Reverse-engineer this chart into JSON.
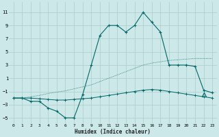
{
  "xlabel": "Humidex (Indice chaleur)",
  "x_ticks": [
    0,
    1,
    2,
    3,
    4,
    5,
    6,
    7,
    8,
    9,
    10,
    11,
    12,
    13,
    14,
    15,
    16,
    17,
    18,
    19,
    20,
    21,
    22,
    23
  ],
  "y_ticks": [
    -5,
    -3,
    -1,
    1,
    3,
    5,
    7,
    9,
    11
  ],
  "ylim": [
    -5.8,
    12.5
  ],
  "xlim": [
    -0.5,
    23.5
  ],
  "bg_color": "#cce8e8",
  "grid_color": "#b0d0d0",
  "line_color": "#006666",
  "curve_main_x": [
    0,
    1,
    2,
    3,
    4,
    5,
    6,
    7,
    8,
    9,
    10,
    11,
    12,
    13,
    14,
    15,
    16,
    17,
    18,
    19,
    20,
    21,
    22,
    23
  ],
  "curve_main_y": [
    -2.0,
    -2.0,
    -2.5,
    -2.5,
    -3.5,
    -4.0,
    -5.0,
    -5.0,
    -1.5,
    3.0,
    7.5,
    9.0,
    9.0,
    8.0,
    9.0,
    11.0,
    9.5,
    8.0,
    3.0,
    3.0,
    3.0,
    2.8,
    -0.8,
    -1.2
  ],
  "curve_diag_x": [
    0,
    1,
    2,
    3,
    4,
    5,
    6,
    7,
    8,
    9,
    10,
    11,
    12,
    13,
    14,
    15,
    16,
    17,
    18,
    19,
    20,
    21,
    22,
    23
  ],
  "curve_diag_y": [
    -2.0,
    -2.0,
    -1.8,
    -1.6,
    -1.3,
    -1.1,
    -0.9,
    -0.6,
    -0.3,
    0.0,
    0.5,
    1.0,
    1.5,
    2.0,
    2.5,
    3.0,
    3.3,
    3.5,
    3.7,
    3.8,
    3.9,
    4.0,
    4.0,
    4.0
  ],
  "curve_flat_x": [
    0,
    1,
    2,
    3,
    4,
    5,
    6,
    7,
    8,
    9,
    10,
    11,
    12,
    13,
    14,
    15,
    16,
    17,
    18,
    19,
    20,
    21,
    22,
    23
  ],
  "curve_flat_y": [
    -2.0,
    -2.0,
    -2.0,
    -2.1,
    -2.2,
    -2.3,
    -2.3,
    -2.2,
    -2.1,
    -2.0,
    -1.8,
    -1.6,
    -1.4,
    -1.2,
    -1.0,
    -0.8,
    -0.7,
    -0.8,
    -1.0,
    -1.2,
    -1.4,
    -1.6,
    -1.8,
    -2.0
  ],
  "triangle_x": 22,
  "triangle_y": -1.5
}
